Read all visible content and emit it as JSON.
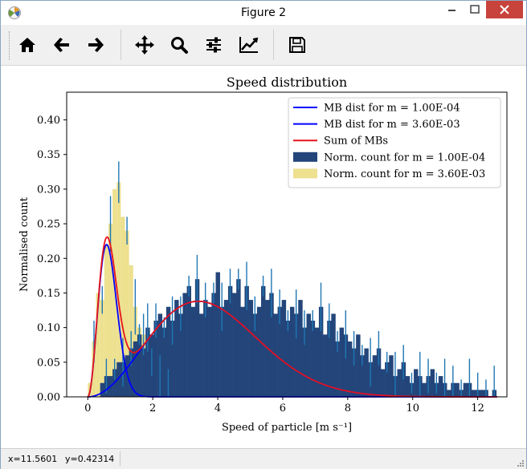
{
  "window": {
    "title": "Figure 2"
  },
  "toolbar": {
    "buttons": [
      {
        "name": "home",
        "icon": "home-icon"
      },
      {
        "name": "back",
        "icon": "arrow-left-icon"
      },
      {
        "name": "forward",
        "icon": "arrow-right-icon"
      },
      {
        "name": "pan",
        "icon": "move-icon"
      },
      {
        "name": "zoom",
        "icon": "magnifier-icon"
      },
      {
        "name": "configure-subplots",
        "icon": "sliders-icon"
      },
      {
        "name": "edit-axis",
        "icon": "line-chart-icon"
      },
      {
        "name": "save",
        "icon": "floppy-disk-icon"
      }
    ]
  },
  "status": {
    "x": "x=11.5601",
    "y": "y=0.42314"
  },
  "colors": {
    "mb_curve": "#0000ff",
    "sum_curve": "#e6141b",
    "hist_small": "#23457a",
    "hist_large": "#ede08f",
    "errorbar": "#1f77b4"
  },
  "chart_data": {
    "type": "bar",
    "title": "Speed distribution",
    "xlabel": "Speed of particle [m s⁻¹]",
    "ylabel": "Normalised count",
    "xlim": [
      -0.65,
      12.9
    ],
    "ylim": [
      0,
      0.44
    ],
    "x_ticks": [
      "0",
      "2",
      "4",
      "6",
      "8",
      "10",
      "12"
    ],
    "y_ticks": [
      "0.00",
      "0.05",
      "0.10",
      "0.15",
      "0.20",
      "0.25",
      "0.30",
      "0.35",
      "0.40"
    ],
    "legend": {
      "placement": "top-right",
      "entries": [
        "MB dist for m = 1.00E-04",
        "MB dist for m = 3.60E-03",
        "Sum of MBs",
        "Norm. count for m = 1.00E-04",
        "Norm. count for m = 3.60E-03"
      ]
    },
    "series": [
      {
        "name": "Norm. count for m = 3.60E-03",
        "bin_width": 0.127,
        "x_start": 0.0,
        "values": [
          0.02,
          0.08,
          0.15,
          0.14,
          0.22,
          0.25,
          0.3,
          0.31,
          0.26,
          0.24,
          0.19,
          0.13,
          0.1,
          0.09,
          0.07,
          0.05,
          0.03,
          0.02,
          0.01,
          0.01
        ]
      },
      {
        "name": "Norm. count for m = 1.00E-04",
        "bin_width": 0.127,
        "x_start": 0.0,
        "values": [
          0.0,
          0.0,
          0.0,
          0.02,
          0.03,
          0.03,
          0.04,
          0.05,
          0.05,
          0.06,
          0.07,
          0.08,
          0.09,
          0.07,
          0.1,
          0.09,
          0.11,
          0.12,
          0.1,
          0.13,
          0.11,
          0.14,
          0.12,
          0.15,
          0.16,
          0.13,
          0.17,
          0.12,
          0.14,
          0.13,
          0.15,
          0.18,
          0.13,
          0.14,
          0.16,
          0.15,
          0.17,
          0.13,
          0.16,
          0.14,
          0.12,
          0.13,
          0.16,
          0.14,
          0.15,
          0.12,
          0.13,
          0.14,
          0.11,
          0.13,
          0.12,
          0.14,
          0.1,
          0.12,
          0.11,
          0.1,
          0.13,
          0.09,
          0.11,
          0.12,
          0.08,
          0.1,
          0.09,
          0.08,
          0.07,
          0.09,
          0.06,
          0.07,
          0.05,
          0.06,
          0.07,
          0.04,
          0.05,
          0.06,
          0.03,
          0.04,
          0.05,
          0.03,
          0.02,
          0.04,
          0.03,
          0.02,
          0.03,
          0.04,
          0.02,
          0.03,
          0.02,
          0.01,
          0.02,
          0.02,
          0.01,
          0.02,
          0.02,
          0.01,
          0.01,
          0.01,
          0.01,
          0.0,
          0.01,
          0.0
        ]
      },
      {
        "name": "MB dist for m = 3.60E-03",
        "peak_x": 0.58,
        "peak_y": 0.22
      },
      {
        "name": "MB dist for m = 1.00E-04",
        "peak_x": 3.4,
        "peak_y": 0.138
      },
      {
        "name": "Sum of MBs",
        "peak_x": 0.62,
        "peak_y": 0.258
      }
    ]
  }
}
